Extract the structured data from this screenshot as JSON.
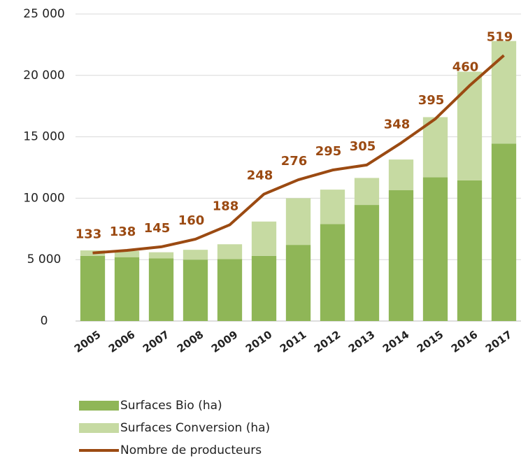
{
  "chart_data": {
    "type": "bar-line",
    "categories": [
      "2005",
      "2006",
      "2007",
      "2008",
      "2009",
      "2010",
      "2011",
      "2012",
      "2013",
      "2014",
      "2015",
      "2016",
      "2017"
    ],
    "series": [
      {
        "name": "Surfaces Bio (ha)",
        "color": "#8fb657",
        "values": [
          5300,
          5200,
          5100,
          5000,
          5050,
          5300,
          6200,
          7900,
          9450,
          10650,
          11700,
          11450,
          14450
        ]
      },
      {
        "name": "Surfaces Conversion (ha)",
        "color": "#c6daa2",
        "values": [
          450,
          500,
          500,
          800,
          1200,
          2800,
          3800,
          2800,
          2200,
          2500,
          4900,
          8850,
          8350
        ]
      },
      {
        "name": "Nombre de producteurs",
        "color": "#9b4a12",
        "axis": "y2",
        "values": [
          133,
          138,
          145,
          160,
          188,
          248,
          276,
          295,
          305,
          348,
          395,
          460,
          519
        ]
      }
    ],
    "ylim": [
      0,
      25000
    ],
    "yticks": [
      0,
      {
        "value": 5000,
        "label": "5 000"
      },
      {
        "value": 10000,
        "label": "10 000"
      },
      {
        "value": 15000,
        "label": "15 000"
      },
      {
        "value": 20000,
        "label": "20 000"
      },
      {
        "value": 25000,
        "label": "25 000"
      }
    ],
    "y2lim": [
      0,
      600
    ],
    "grid": true,
    "legend": "bottom-left"
  }
}
